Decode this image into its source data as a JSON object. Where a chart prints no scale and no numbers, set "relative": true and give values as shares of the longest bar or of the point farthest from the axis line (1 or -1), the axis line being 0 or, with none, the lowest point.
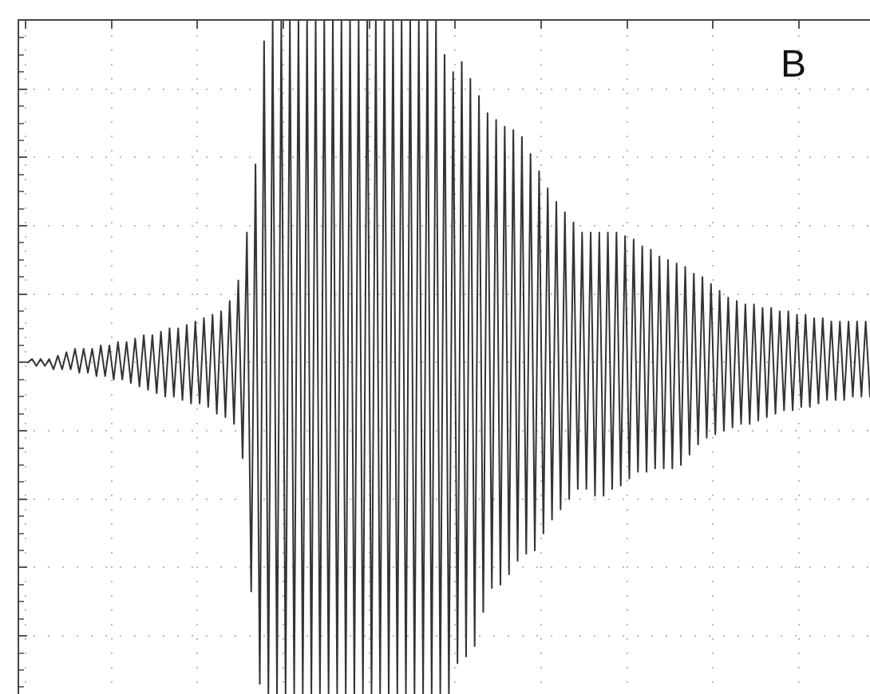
{
  "chart_data": {
    "type": "line",
    "relative": true,
    "grid": true,
    "color": "#333333",
    "annotations": [
      "B"
    ],
    "categories": [
      null,
      null,
      null,
      null,
      null,
      null,
      null,
      null,
      null,
      null,
      null,
      null,
      null,
      null,
      null,
      null,
      null,
      null,
      null,
      null,
      null,
      null,
      null,
      null,
      null,
      null,
      null,
      null,
      null,
      null,
      null,
      null,
      null,
      null,
      null,
      null,
      null,
      null,
      null,
      null,
      null,
      null,
      null,
      null,
      null,
      null,
      null,
      null,
      null,
      null,
      null,
      null,
      null,
      null,
      null,
      null,
      null,
      null,
      null,
      null,
      null,
      null,
      null,
      null,
      null,
      null,
      null,
      null,
      null,
      null,
      null,
      null,
      null,
      null,
      null,
      null,
      null,
      null,
      null,
      null,
      null,
      null,
      null,
      null,
      null,
      null,
      null,
      null,
      null,
      null,
      null,
      null,
      null,
      null,
      null,
      null,
      null,
      null,
      null,
      null,
      null,
      null,
      null,
      null,
      null,
      null,
      null,
      null,
      null,
      null,
      null,
      null,
      null,
      null,
      null,
      null,
      null,
      null,
      null,
      null,
      null,
      null,
      null,
      null,
      null,
      null,
      null,
      null,
      null,
      null,
      null,
      null,
      null,
      null,
      null,
      null,
      null,
      null,
      null,
      null,
      null,
      null,
      null,
      null,
      null,
      null,
      null,
      null,
      null,
      null,
      null,
      null,
      null,
      null,
      null,
      null,
      null,
      null,
      null,
      null,
      null,
      null,
      null,
      null,
      null,
      null,
      null,
      null,
      null,
      null,
      null,
      null,
      null,
      null,
      null,
      null,
      null,
      null,
      null,
      null,
      null,
      null,
      null,
      null,
      null,
      null,
      null,
      null,
      null,
      null,
      null,
      null,
      null,
      null,
      null,
      null,
      null
    ],
    "values": [
      0,
      0.01,
      -0.01,
      0.01,
      -0.01,
      0.01,
      -0.02,
      0.02,
      -0.02,
      0.03,
      -0.02,
      0.04,
      -0.03,
      0.04,
      -0.03,
      0.04,
      -0.04,
      0.05,
      -0.04,
      0.05,
      -0.05,
      0.06,
      -0.05,
      0.06,
      -0.06,
      0.07,
      -0.07,
      0.08,
      -0.08,
      0.08,
      -0.09,
      0.09,
      -0.1,
      0.1,
      -0.1,
      0.1,
      -0.11,
      0.11,
      -0.12,
      0.12,
      -0.12,
      0.13,
      -0.13,
      0.14,
      -0.15,
      0.15,
      -0.16,
      0.18,
      -0.18,
      0.24,
      -0.28,
      0.38,
      -0.67,
      0.58,
      -0.94,
      0.94,
      -0.97,
      1,
      -0.97,
      1,
      -0.97,
      1,
      -0.97,
      1,
      -0.97,
      1,
      -0.97,
      1,
      -0.97,
      1,
      -0.97,
      1,
      -0.97,
      1,
      -0.97,
      1,
      -0.97,
      1,
      -0.97,
      1,
      -0.97,
      1,
      -0.97,
      1,
      -0.97,
      1,
      -0.97,
      1,
      -0.97,
      1,
      -0.97,
      1,
      -0.97,
      1,
      -0.97,
      1,
      -0.97,
      0.9,
      -0.97,
      0.85,
      -0.88,
      0.88,
      -0.86,
      0.83,
      -0.83,
      0.78,
      -0.73,
      0.73,
      -0.66,
      0.71,
      -0.65,
      0.69,
      -0.62,
      0.68,
      -0.58,
      0.66,
      -0.56,
      0.61,
      -0.55,
      0.56,
      -0.5,
      0.51,
      -0.46,
      0.47,
      -0.43,
      0.44,
      -0.4,
      0.41,
      -0.37,
      0.38,
      -0.37,
      0.38,
      -0.39,
      0.38,
      -0.39,
      0.38,
      -0.37,
      0.38,
      -0.36,
      0.37,
      -0.34,
      0.36,
      -0.32,
      0.34,
      -0.32,
      0.33,
      -0.31,
      0.31,
      -0.31,
      0.3,
      -0.31,
      0.29,
      -0.3,
      0.28,
      -0.27,
      0.26,
      -0.24,
      0.25,
      -0.22,
      0.23,
      -0.21,
      0.21,
      -0.2,
      0.19,
      -0.19,
      0.18,
      -0.18,
      0.17,
      -0.18,
      0.17,
      -0.17,
      0.16,
      -0.16,
      0.16,
      -0.15,
      0.15,
      -0.14,
      0.15,
      -0.14,
      0.14,
      -0.13,
      0.14,
      -0.13,
      0.13,
      -0.12,
      0.13,
      -0.11,
      0.12,
      -0.11,
      0.12,
      -0.11,
      0.12,
      -0.1,
      0.12,
      -0.1,
      0.12,
      -0.1
    ]
  }
}
